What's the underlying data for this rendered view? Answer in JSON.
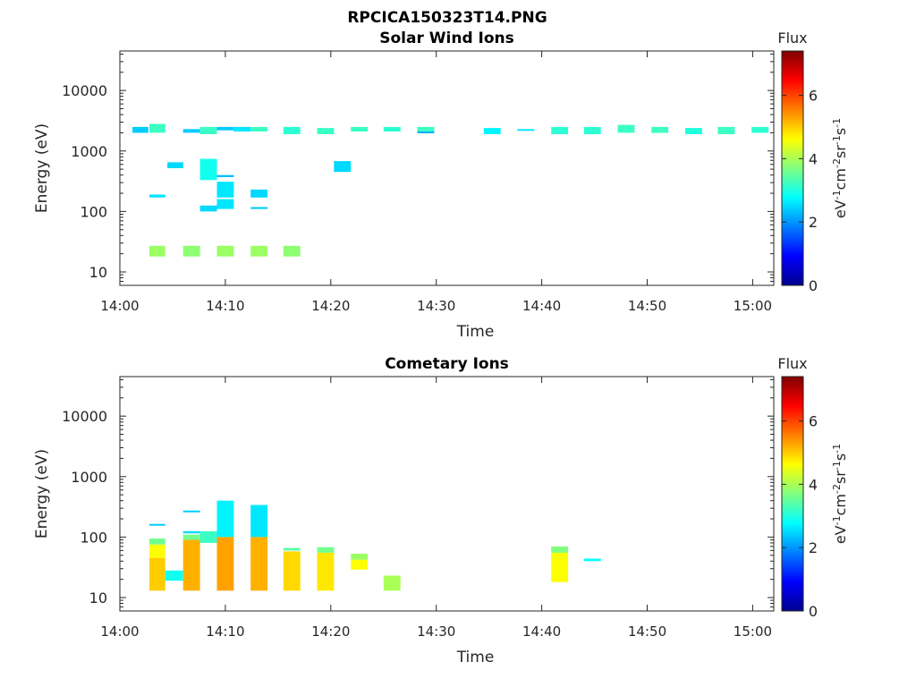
{
  "figure_title": "RPCICA150323T14.PNG",
  "colorbar_title": "Flux",
  "colormap": [
    "#00008f",
    "#0000ff",
    "#0080ff",
    "#00ffff",
    "#80ff80",
    "#ffff00",
    "#ff8000",
    "#ff0000",
    "#800000"
  ],
  "chart_data": [
    {
      "type": "heatmap",
      "title": "Solar Wind Ions",
      "xlabel": "Time",
      "ylabel": "Energy (eV)",
      "yscale": "log",
      "xlim": [
        "14:00",
        "15:02"
      ],
      "ylim": [
        6,
        45000
      ],
      "x_ticks": [
        "14:00",
        "14:10",
        "14:20",
        "14:30",
        "14:40",
        "14:50",
        "15:00"
      ],
      "y_ticks": [
        10,
        100,
        1000,
        10000
      ],
      "y_tick_labels": [
        "10",
        "100",
        "1000",
        "10000"
      ],
      "colorbar": {
        "label": "eV-1cm-2sr-1s-1",
        "range": [
          0,
          7.4
        ],
        "ticks": [
          0,
          2,
          4,
          6
        ]
      },
      "cells": [
        {
          "t_start": "14:01.2",
          "t_end": "14:02.7",
          "e_min": 2000,
          "e_max": 2500,
          "flux": 2.4
        },
        {
          "t_start": "14:02.8",
          "t_end": "14:04.3",
          "e_min": 2000,
          "e_max": 2800,
          "flux": 3.2
        },
        {
          "t_start": "14:02.8",
          "t_end": "14:04.3",
          "e_min": 170,
          "e_max": 190,
          "flux": 2.6
        },
        {
          "t_start": "14:02.8",
          "t_end": "14:04.3",
          "e_min": 18,
          "e_max": 27,
          "flux": 3.9
        },
        {
          "t_start": "14:04.5",
          "t_end": "14:06.0",
          "e_min": 520,
          "e_max": 650,
          "flux": 2.5
        },
        {
          "t_start": "14:06.0",
          "t_end": "14:07.6",
          "e_min": 2000,
          "e_max": 2300,
          "flux": 2.4
        },
        {
          "t_start": "14:06.0",
          "t_end": "14:07.6",
          "e_min": 18,
          "e_max": 27,
          "flux": 3.8
        },
        {
          "t_start": "14:07.6",
          "t_end": "14:09.2",
          "e_min": 1900,
          "e_max": 2500,
          "flux": 3.2
        },
        {
          "t_start": "14:07.6",
          "t_end": "14:09.2",
          "e_min": 330,
          "e_max": 740,
          "flux": 2.9
        },
        {
          "t_start": "14:07.6",
          "t_end": "14:09.2",
          "e_min": 100,
          "e_max": 125,
          "flux": 2.5
        },
        {
          "t_start": "14:09.2",
          "t_end": "14:10.8",
          "e_min": 2200,
          "e_max": 2500,
          "flux": 2.4
        },
        {
          "t_start": "14:09.2",
          "t_end": "14:10.8",
          "e_min": 370,
          "e_max": 400,
          "flux": 2.3
        },
        {
          "t_start": "14:09.2",
          "t_end": "14:10.8",
          "e_min": 170,
          "e_max": 310,
          "flux": 2.6
        },
        {
          "t_start": "14:09.2",
          "t_end": "14:10.8",
          "e_min": 110,
          "e_max": 160,
          "flux": 2.6
        },
        {
          "t_start": "14:09.2",
          "t_end": "14:10.8",
          "e_min": 18,
          "e_max": 27,
          "flux": 3.9
        },
        {
          "t_start": "14:10.8",
          "t_end": "14:12.4",
          "e_min": 2100,
          "e_max": 2500,
          "flux": 2.6
        },
        {
          "t_start": "14:12.4",
          "t_end": "14:14.0",
          "e_min": 2100,
          "e_max": 2500,
          "flux": 3.2
        },
        {
          "t_start": "14:12.4",
          "t_end": "14:14.0",
          "e_min": 170,
          "e_max": 230,
          "flux": 2.5
        },
        {
          "t_start": "14:12.4",
          "t_end": "14:14.0",
          "e_min": 110,
          "e_max": 118,
          "flux": 2.4
        },
        {
          "t_start": "14:12.4",
          "t_end": "14:14.0",
          "e_min": 18,
          "e_max": 27,
          "flux": 3.9
        },
        {
          "t_start": "14:15.5",
          "t_end": "14:17.1",
          "e_min": 1900,
          "e_max": 2500,
          "flux": 3.1
        },
        {
          "t_start": "14:15.5",
          "t_end": "14:17.1",
          "e_min": 18,
          "e_max": 27,
          "flux": 3.8
        },
        {
          "t_start": "14:18.7",
          "t_end": "14:20.3",
          "e_min": 1900,
          "e_max": 2400,
          "flux": 3.2
        },
        {
          "t_start": "14:20.3",
          "t_end": "14:21.9",
          "e_min": 450,
          "e_max": 680,
          "flux": 2.5
        },
        {
          "t_start": "14:21.9",
          "t_end": "14:23.5",
          "e_min": 2100,
          "e_max": 2500,
          "flux": 3.2
        },
        {
          "t_start": "14:25.0",
          "t_end": "14:26.6",
          "e_min": 2100,
          "e_max": 2500,
          "flux": 3.1
        },
        {
          "t_start": "14:28.2",
          "t_end": "14:29.8",
          "e_min": 2100,
          "e_max": 2500,
          "flux": 3.2
        },
        {
          "t_start": "14:28.2",
          "t_end": "14:29.8",
          "e_min": 2000,
          "e_max": 2100,
          "flux": 2.2
        },
        {
          "t_start": "14:34.5",
          "t_end": "14:36.1",
          "e_min": 1900,
          "e_max": 2400,
          "flux": 2.7
        },
        {
          "t_start": "14:37.7",
          "t_end": "14:39.3",
          "e_min": 2200,
          "e_max": 2300,
          "flux": 2.6
        },
        {
          "t_start": "14:40.9",
          "t_end": "14:42.5",
          "e_min": 1900,
          "e_max": 2500,
          "flux": 3.1
        },
        {
          "t_start": "14:44.0",
          "t_end": "14:45.6",
          "e_min": 1900,
          "e_max": 2500,
          "flux": 3.1
        },
        {
          "t_start": "14:47.2",
          "t_end": "14:48.8",
          "e_min": 2000,
          "e_max": 2700,
          "flux": 3.2
        },
        {
          "t_start": "14:50.4",
          "t_end": "14:52.0",
          "e_min": 2000,
          "e_max": 2500,
          "flux": 3.2
        },
        {
          "t_start": "14:53.6",
          "t_end": "14:55.2",
          "e_min": 1900,
          "e_max": 2400,
          "flux": 3.0
        },
        {
          "t_start": "14:56.7",
          "t_end": "14:58.3",
          "e_min": 1900,
          "e_max": 2500,
          "flux": 3.2
        },
        {
          "t_start": "14:59.9",
          "t_end": "15:01.5",
          "e_min": 2000,
          "e_max": 2500,
          "flux": 3.1
        }
      ]
    },
    {
      "type": "heatmap",
      "title": "Cometary Ions",
      "xlabel": "Time",
      "ylabel": "Energy (eV)",
      "yscale": "log",
      "xlim": [
        "14:00",
        "15:02"
      ],
      "ylim": [
        6,
        45000
      ],
      "x_ticks": [
        "14:00",
        "14:10",
        "14:20",
        "14:30",
        "14:40",
        "14:50",
        "15:00"
      ],
      "y_ticks": [
        10,
        100,
        1000,
        10000
      ],
      "y_tick_labels": [
        "10",
        "100",
        "1000",
        "10000"
      ],
      "colorbar": {
        "label": "eV-1cm-2sr-1s-1",
        "range": [
          0,
          7.4
        ],
        "ticks": [
          0,
          2,
          4,
          6
        ]
      },
      "cells": [
        {
          "t_start": "14:02.8",
          "t_end": "14:04.3",
          "e_min": 155,
          "e_max": 165,
          "flux": 2.4
        },
        {
          "t_start": "14:02.8",
          "t_end": "14:04.3",
          "e_min": 75,
          "e_max": 95,
          "flux": 3.6
        },
        {
          "t_start": "14:02.8",
          "t_end": "14:04.3",
          "e_min": 45,
          "e_max": 75,
          "flux": 4.6
        },
        {
          "t_start": "14:02.8",
          "t_end": "14:04.3",
          "e_min": 13,
          "e_max": 45,
          "flux": 5.0
        },
        {
          "t_start": "14:04.3",
          "t_end": "14:06.0",
          "e_min": 19,
          "e_max": 28,
          "flux": 2.9
        },
        {
          "t_start": "14:06.0",
          "t_end": "14:07.6",
          "e_min": 260,
          "e_max": 275,
          "flux": 2.4
        },
        {
          "t_start": "14:06.0",
          "t_end": "14:07.6",
          "e_min": 115,
          "e_max": 125,
          "flux": 2.5
        },
        {
          "t_start": "14:06.0",
          "t_end": "14:07.6",
          "e_min": 90,
          "e_max": 110,
          "flux": 3.6
        },
        {
          "t_start": "14:06.0",
          "t_end": "14:07.6",
          "e_min": 13,
          "e_max": 90,
          "flux": 5.2
        },
        {
          "t_start": "14:07.6",
          "t_end": "14:09.2",
          "e_min": 80,
          "e_max": 125,
          "flux": 3.2
        },
        {
          "t_start": "14:09.2",
          "t_end": "14:10.8",
          "e_min": 100,
          "e_max": 400,
          "flux": 2.7
        },
        {
          "t_start": "14:09.2",
          "t_end": "14:10.8",
          "e_min": 13,
          "e_max": 100,
          "flux": 5.3
        },
        {
          "t_start": "14:12.4",
          "t_end": "14:14.0",
          "e_min": 100,
          "e_max": 340,
          "flux": 2.6
        },
        {
          "t_start": "14:12.4",
          "t_end": "14:14.0",
          "e_min": 13,
          "e_max": 100,
          "flux": 5.2
        },
        {
          "t_start": "14:15.5",
          "t_end": "14:17.1",
          "e_min": 60,
          "e_max": 66,
          "flux": 3.4
        },
        {
          "t_start": "14:15.5",
          "t_end": "14:17.1",
          "e_min": 13,
          "e_max": 58,
          "flux": 4.9
        },
        {
          "t_start": "14:18.7",
          "t_end": "14:20.3",
          "e_min": 55,
          "e_max": 68,
          "flux": 3.6
        },
        {
          "t_start": "14:18.7",
          "t_end": "14:20.3",
          "e_min": 13,
          "e_max": 55,
          "flux": 4.8
        },
        {
          "t_start": "14:21.9",
          "t_end": "14:23.5",
          "e_min": 42,
          "e_max": 53,
          "flux": 3.9
        },
        {
          "t_start": "14:21.9",
          "t_end": "14:23.5",
          "e_min": 29,
          "e_max": 42,
          "flux": 4.6
        },
        {
          "t_start": "14:25.0",
          "t_end": "14:26.6",
          "e_min": 13,
          "e_max": 23,
          "flux": 4.0
        },
        {
          "t_start": "14:40.9",
          "t_end": "14:42.5",
          "e_min": 55,
          "e_max": 70,
          "flux": 3.7
        },
        {
          "t_start": "14:40.9",
          "t_end": "14:42.5",
          "e_min": 18,
          "e_max": 55,
          "flux": 4.6
        },
        {
          "t_start": "14:44.0",
          "t_end": "14:45.6",
          "e_min": 40,
          "e_max": 44,
          "flux": 2.8
        }
      ]
    }
  ]
}
